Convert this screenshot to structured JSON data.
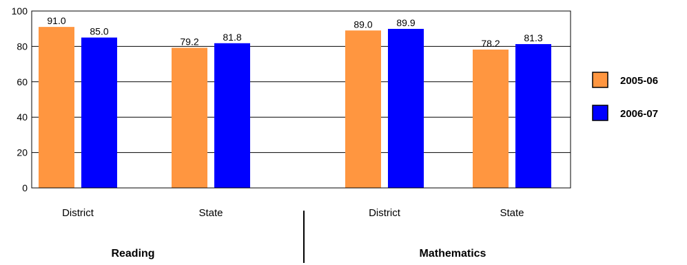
{
  "chart_data": {
    "type": "bar",
    "groups": [
      {
        "name": "Reading",
        "categories": [
          "District",
          "State"
        ]
      },
      {
        "name": "Mathematics",
        "categories": [
          "District",
          "State"
        ]
      }
    ],
    "series": [
      {
        "name": "2005-06",
        "color": "#FF9640",
        "values": [
          91.0,
          79.2,
          89.0,
          78.2
        ]
      },
      {
        "name": "2006-07",
        "color": "#0000FF",
        "values": [
          85.0,
          81.8,
          89.9,
          81.3
        ]
      }
    ],
    "value_labels": {
      "2005-06": [
        "91.0",
        "79.2",
        "89.0",
        "78.2"
      ],
      "2006-07": [
        "85.0",
        "81.8",
        "89.9",
        "81.3"
      ]
    },
    "y_ticks": [
      "0",
      "20",
      "40",
      "60",
      "80",
      "100"
    ],
    "ylim": [
      0,
      100
    ],
    "grid": true,
    "legend_position": "right",
    "title": "",
    "xlabel": "",
    "ylabel": ""
  }
}
